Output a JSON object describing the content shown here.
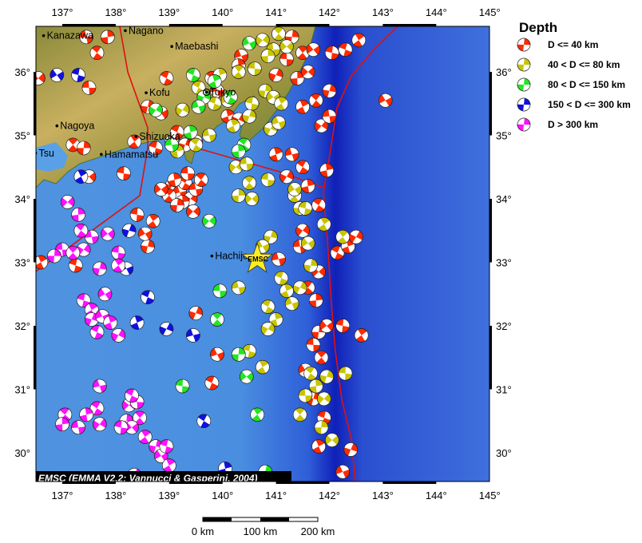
{
  "map": {
    "credit": "EMSC (EMMA V2.2; Vannucci & Gasperini, 2004)",
    "star_label": "EMSC",
    "extent": {
      "lon": [
        136.5,
        145.0
      ],
      "lat": [
        29.5,
        36.7
      ]
    },
    "lon_ticks": [
      "137°",
      "138°",
      "139°",
      "140°",
      "141°",
      "142°",
      "143°",
      "144°",
      "145°"
    ],
    "lat_ticks": [
      "36°",
      "35°",
      "34°",
      "33°",
      "32°",
      "31°",
      "30°"
    ],
    "epicenter": [
      140.65,
      33.05
    ],
    "cities": [
      {
        "name": "Kanazawa",
        "lon": 136.65,
        "lat": 36.57
      },
      {
        "name": "Nagano",
        "lon": 138.18,
        "lat": 36.65
      },
      {
        "name": "Maebashi",
        "lon": 139.05,
        "lat": 36.4
      },
      {
        "name": "Kofu",
        "lon": 138.57,
        "lat": 35.67
      },
      {
        "name": "Tokyo",
        "lon": 139.7,
        "lat": 35.68
      },
      {
        "name": "Nagoya",
        "lon": 136.9,
        "lat": 35.15
      },
      {
        "name": "Shizuoka",
        "lon": 138.38,
        "lat": 34.98
      },
      {
        "name": "Hamamatsu",
        "lon": 137.73,
        "lat": 34.7
      },
      {
        "name": "Tsu",
        "lon": 136.5,
        "lat": 34.72
      },
      {
        "name": "Hachijo",
        "lon": 139.8,
        "lat": 33.1
      }
    ],
    "scale_labels": [
      "0 km",
      "100 km",
      "200 km"
    ]
  },
  "legend": {
    "title": "Depth",
    "items": [
      {
        "label": "D <= 40 km",
        "color": "#ff2a00"
      },
      {
        "label": "40 < D <= 80 km",
        "color": "#c8c400"
      },
      {
        "label": "80 < D <= 150 km",
        "color": "#22e622"
      },
      {
        "label": "150 < D <= 300 km",
        "color": "#1010e0"
      },
      {
        "label": "D > 300 km",
        "color": "#ff10ff"
      }
    ]
  },
  "events_by_depth_class": [
    [
      [
        137.45,
        36.55
      ],
      [
        137.65,
        36.3
      ],
      [
        137.85,
        36.55
      ],
      [
        136.55,
        35.9
      ],
      [
        137.5,
        35.75
      ],
      [
        137.2,
        34.85
      ],
      [
        137.4,
        34.8
      ],
      [
        137.5,
        34.35
      ],
      [
        138.15,
        34.4
      ],
      [
        138.35,
        34.9
      ],
      [
        138.6,
        35.45
      ],
      [
        138.85,
        35.35
      ],
      [
        138.75,
        34.8
      ],
      [
        139.05,
        34.9
      ],
      [
        139.3,
        34.85
      ],
      [
        139.5,
        34.9
      ],
      [
        139.15,
        35.05
      ],
      [
        138.95,
        34.1
      ],
      [
        139.05,
        34.2
      ],
      [
        139.2,
        34.1
      ],
      [
        139.3,
        34.25
      ],
      [
        139.1,
        34.3
      ],
      [
        139.4,
        34.0
      ],
      [
        139.5,
        34.15
      ],
      [
        139.6,
        34.3
      ],
      [
        139.25,
        33.95
      ],
      [
        139.45,
        33.8
      ],
      [
        139.35,
        34.4
      ],
      [
        139.0,
        34.05
      ],
      [
        139.15,
        33.9
      ],
      [
        138.85,
        34.15
      ],
      [
        138.4,
        33.75
      ],
      [
        138.7,
        33.65
      ],
      [
        138.6,
        33.25
      ],
      [
        138.55,
        33.45
      ],
      [
        137.25,
        32.95
      ],
      [
        136.6,
        33.0
      ],
      [
        139.5,
        32.2
      ],
      [
        139.9,
        31.55
      ],
      [
        139.8,
        31.1
      ],
      [
        141.0,
        34.7
      ],
      [
        141.2,
        34.35
      ],
      [
        141.3,
        34.7
      ],
      [
        141.5,
        34.5
      ],
      [
        141.6,
        34.2
      ],
      [
        141.5,
        33.5
      ],
      [
        141.45,
        33.25
      ],
      [
        141.6,
        32.6
      ],
      [
        141.75,
        32.4
      ],
      [
        141.8,
        32.85
      ],
      [
        141.7,
        31.7
      ],
      [
        141.85,
        31.5
      ],
      [
        141.8,
        31.9
      ],
      [
        141.95,
        32.0
      ],
      [
        142.25,
        32.0
      ],
      [
        142.6,
        31.85
      ],
      [
        141.7,
        30.85
      ],
      [
        141.55,
        31.3
      ],
      [
        141.9,
        30.55
      ],
      [
        141.8,
        30.1
      ],
      [
        142.4,
        30.05
      ],
      [
        142.25,
        29.7
      ],
      [
        142.15,
        33.15
      ],
      [
        142.35,
        33.25
      ],
      [
        142.5,
        33.4
      ],
      [
        141.05,
        33.05
      ],
      [
        141.8,
        33.9
      ],
      [
        141.95,
        34.45
      ],
      [
        141.85,
        35.15
      ],
      [
        142.0,
        35.3
      ],
      [
        141.75,
        35.55
      ],
      [
        141.4,
        35.9
      ],
      [
        141.6,
        36.0
      ],
      [
        141.2,
        36.2
      ],
      [
        141.5,
        36.3
      ],
      [
        141.3,
        36.55
      ],
      [
        141.7,
        36.35
      ],
      [
        142.05,
        36.3
      ],
      [
        142.55,
        36.5
      ],
      [
        142.0,
        35.7
      ],
      [
        143.05,
        35.55
      ],
      [
        142.3,
        36.35
      ],
      [
        141.5,
        35.45
      ],
      [
        141.0,
        35.95
      ],
      [
        140.35,
        36.25
      ],
      [
        138.95,
        35.9
      ],
      [
        140.1,
        35.3
      ],
      [
        140.3,
        35.25
      ],
      [
        139.9,
        35.7
      ],
      [
        139.8,
        35.9
      ],
      [
        140.3,
        36.1
      ]
    ],
    [
      [
        140.75,
        36.5
      ],
      [
        140.95,
        36.35
      ],
      [
        141.05,
        36.6
      ],
      [
        140.85,
        36.25
      ],
      [
        141.2,
        36.4
      ],
      [
        140.6,
        36.05
      ],
      [
        140.3,
        36.0
      ],
      [
        140.8,
        35.7
      ],
      [
        140.95,
        35.6
      ],
      [
        140.55,
        35.5
      ],
      [
        141.1,
        35.5
      ],
      [
        140.5,
        35.3
      ],
      [
        140.1,
        35.55
      ],
      [
        139.85,
        35.5
      ],
      [
        140.2,
        35.15
      ],
      [
        140.9,
        35.1
      ],
      [
        141.05,
        35.2
      ],
      [
        139.55,
        35.75
      ],
      [
        139.95,
        35.95
      ],
      [
        139.25,
        35.4
      ],
      [
        139.75,
        35.0
      ],
      [
        139.5,
        34.85
      ],
      [
        139.15,
        34.75
      ],
      [
        140.25,
        34.5
      ],
      [
        140.45,
        34.55
      ],
      [
        140.5,
        34.25
      ],
      [
        140.3,
        34.05
      ],
      [
        140.55,
        34.0
      ],
      [
        140.85,
        34.3
      ],
      [
        141.35,
        34.05
      ],
      [
        141.45,
        33.85
      ],
      [
        141.35,
        34.15
      ],
      [
        141.55,
        33.85
      ],
      [
        141.9,
        33.6
      ],
      [
        140.9,
        33.4
      ],
      [
        140.75,
        33.25
      ],
      [
        141.1,
        32.75
      ],
      [
        141.2,
        32.55
      ],
      [
        141.45,
        32.6
      ],
      [
        141.3,
        32.35
      ],
      [
        140.85,
        32.3
      ],
      [
        141.0,
        32.1
      ],
      [
        140.85,
        31.95
      ],
      [
        140.3,
        32.6
      ],
      [
        141.65,
        31.25
      ],
      [
        141.75,
        31.05
      ],
      [
        141.9,
        30.85
      ],
      [
        141.55,
        30.9
      ],
      [
        141.45,
        30.6
      ],
      [
        141.85,
        30.4
      ],
      [
        142.05,
        30.2
      ],
      [
        142.3,
        31.25
      ],
      [
        142.25,
        33.4
      ],
      [
        141.65,
        32.95
      ],
      [
        141.6,
        33.3
      ],
      [
        140.5,
        31.6
      ],
      [
        140.75,
        31.35
      ],
      [
        141.95,
        31.2
      ]
    ],
    [
      [
        140.5,
        36.45
      ],
      [
        139.45,
        35.95
      ],
      [
        139.85,
        35.85
      ],
      [
        139.65,
        35.6
      ],
      [
        139.55,
        35.45
      ],
      [
        140.15,
        35.6
      ],
      [
        139.4,
        35.05
      ],
      [
        138.75,
        35.4
      ],
      [
        139.05,
        34.85
      ],
      [
        140.4,
        34.85
      ],
      [
        140.3,
        34.75
      ],
      [
        139.75,
        33.65
      ],
      [
        139.95,
        32.55
      ],
      [
        139.9,
        32.1
      ],
      [
        140.3,
        31.55
      ],
      [
        140.45,
        31.2
      ],
      [
        139.25,
        31.05
      ],
      [
        140.65,
        30.6
      ],
      [
        140.8,
        29.7
      ]
    ],
    [
      [
        136.9,
        35.95
      ],
      [
        137.3,
        35.95
      ],
      [
        137.35,
        34.35
      ],
      [
        138.25,
        33.5
      ],
      [
        138.2,
        32.9
      ],
      [
        138.6,
        32.45
      ],
      [
        138.4,
        32.05
      ],
      [
        138.95,
        31.95
      ],
      [
        139.45,
        31.85
      ],
      [
        139.65,
        30.5
      ],
      [
        140.05,
        29.75
      ]
    ],
    [
      [
        137.4,
        33.2
      ],
      [
        137.55,
        33.4
      ],
      [
        137.35,
        33.5
      ],
      [
        137.3,
        33.75
      ],
      [
        137.1,
        33.95
      ],
      [
        137.0,
        33.2
      ],
      [
        137.2,
        33.15
      ],
      [
        136.85,
        33.1
      ],
      [
        137.85,
        33.45
      ],
      [
        138.05,
        33.15
      ],
      [
        138.05,
        32.95
      ],
      [
        137.7,
        32.9
      ],
      [
        137.8,
        32.5
      ],
      [
        137.4,
        32.4
      ],
      [
        137.55,
        32.25
      ],
      [
        137.55,
        32.1
      ],
      [
        137.75,
        32.15
      ],
      [
        137.65,
        31.9
      ],
      [
        137.9,
        32.05
      ],
      [
        138.05,
        31.85
      ],
      [
        137.7,
        31.05
      ],
      [
        137.65,
        30.7
      ],
      [
        137.45,
        30.6
      ],
      [
        137.7,
        30.45
      ],
      [
        137.3,
        30.4
      ],
      [
        137.05,
        30.6
      ],
      [
        137.0,
        30.45
      ],
      [
        138.25,
        30.75
      ],
      [
        138.4,
        30.8
      ],
      [
        138.45,
        30.55
      ],
      [
        138.2,
        30.5
      ],
      [
        138.3,
        30.4
      ],
      [
        138.1,
        30.4
      ],
      [
        138.55,
        30.25
      ],
      [
        138.75,
        30.1
      ],
      [
        138.85,
        29.95
      ],
      [
        138.95,
        30.1
      ],
      [
        139.0,
        29.8
      ],
      [
        138.35,
        29.65
      ],
      [
        138.6,
        29.55
      ],
      [
        138.3,
        30.9
      ]
    ]
  ]
}
